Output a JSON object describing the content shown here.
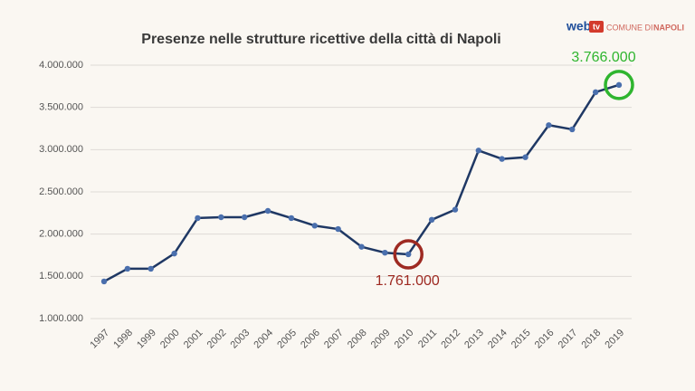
{
  "chart_data": {
    "type": "line",
    "title": "Presenze nelle strutture ricettive della città di Napoli",
    "categories": [
      "1997",
      "1998",
      "1999",
      "2000",
      "2001",
      "2002",
      "2003",
      "2004",
      "2005",
      "2006",
      "2007",
      "2008",
      "2009",
      "2010",
      "2011",
      "2012",
      "2013",
      "2014",
      "2015",
      "2016",
      "2017",
      "2018",
      "2019"
    ],
    "series": [
      {
        "color": "#1f3864",
        "values": [
          1440000,
          1590000,
          1590000,
          1770000,
          2190000,
          2200000,
          2200000,
          2275000,
          2190000,
          2100000,
          2060000,
          1850000,
          1780000,
          1761000,
          2170000,
          2290000,
          2990000,
          2890000,
          2910000,
          3290000,
          3240000,
          3680000,
          3766000
        ],
        "value_labels": [
          null,
          null,
          null,
          null,
          null,
          null,
          null,
          null,
          null,
          null,
          null,
          null,
          null,
          "1.761.000",
          null,
          null,
          null,
          null,
          null,
          null,
          null,
          null,
          "3.766.000"
        ],
        "value_label_colors": [
          null,
          null,
          null,
          null,
          null,
          null,
          null,
          null,
          null,
          null,
          null,
          null,
          null,
          "#9e2a22",
          null,
          null,
          null,
          null,
          null,
          null,
          null,
          null,
          "#2fb52f"
        ]
      }
    ],
    "ylim": [
      1000000,
      4000000
    ],
    "yticks": [
      {
        "value": 1000000,
        "label": "1.000.000"
      },
      {
        "value": 1500000,
        "label": "1.500.000"
      },
      {
        "value": 2000000,
        "label": "2.000.000"
      },
      {
        "value": 2500000,
        "label": "2.500.000"
      },
      {
        "value": 3000000,
        "label": "3.000.000"
      },
      {
        "value": 3500000,
        "label": "3.500.000"
      },
      {
        "value": 4000000,
        "label": "4.000.000"
      }
    ],
    "grid": true
  },
  "logo": {
    "web": "web",
    "tv": "tv",
    "comune": "COMUNE DI",
    "city": "NAPOLI"
  }
}
